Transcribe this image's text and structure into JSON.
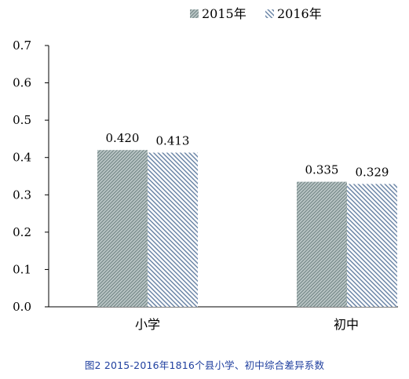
{
  "chart_data": {
    "type": "bar",
    "categories": [
      "小学",
      "初中"
    ],
    "series": [
      {
        "name": "2015年",
        "values": [
          0.42,
          0.335
        ],
        "labels": [
          "0.420",
          "0.335"
        ],
        "color": "#9aa8a8",
        "pattern": "dense-diagonal"
      },
      {
        "name": "2016年",
        "values": [
          0.413,
          0.329
        ],
        "labels": [
          "0.413",
          "0.329"
        ],
        "color": "#6d87a8",
        "pattern": "light-diagonal"
      }
    ],
    "ylim": [
      0,
      0.7
    ],
    "yticks": [
      "0.0",
      "0.1",
      "0.2",
      "0.3",
      "0.4",
      "0.5",
      "0.6",
      "0.7"
    ],
    "legend_position": "top",
    "grid": false
  },
  "caption": "图2  2015-2016年1816个县小学、初中综合差异系数"
}
